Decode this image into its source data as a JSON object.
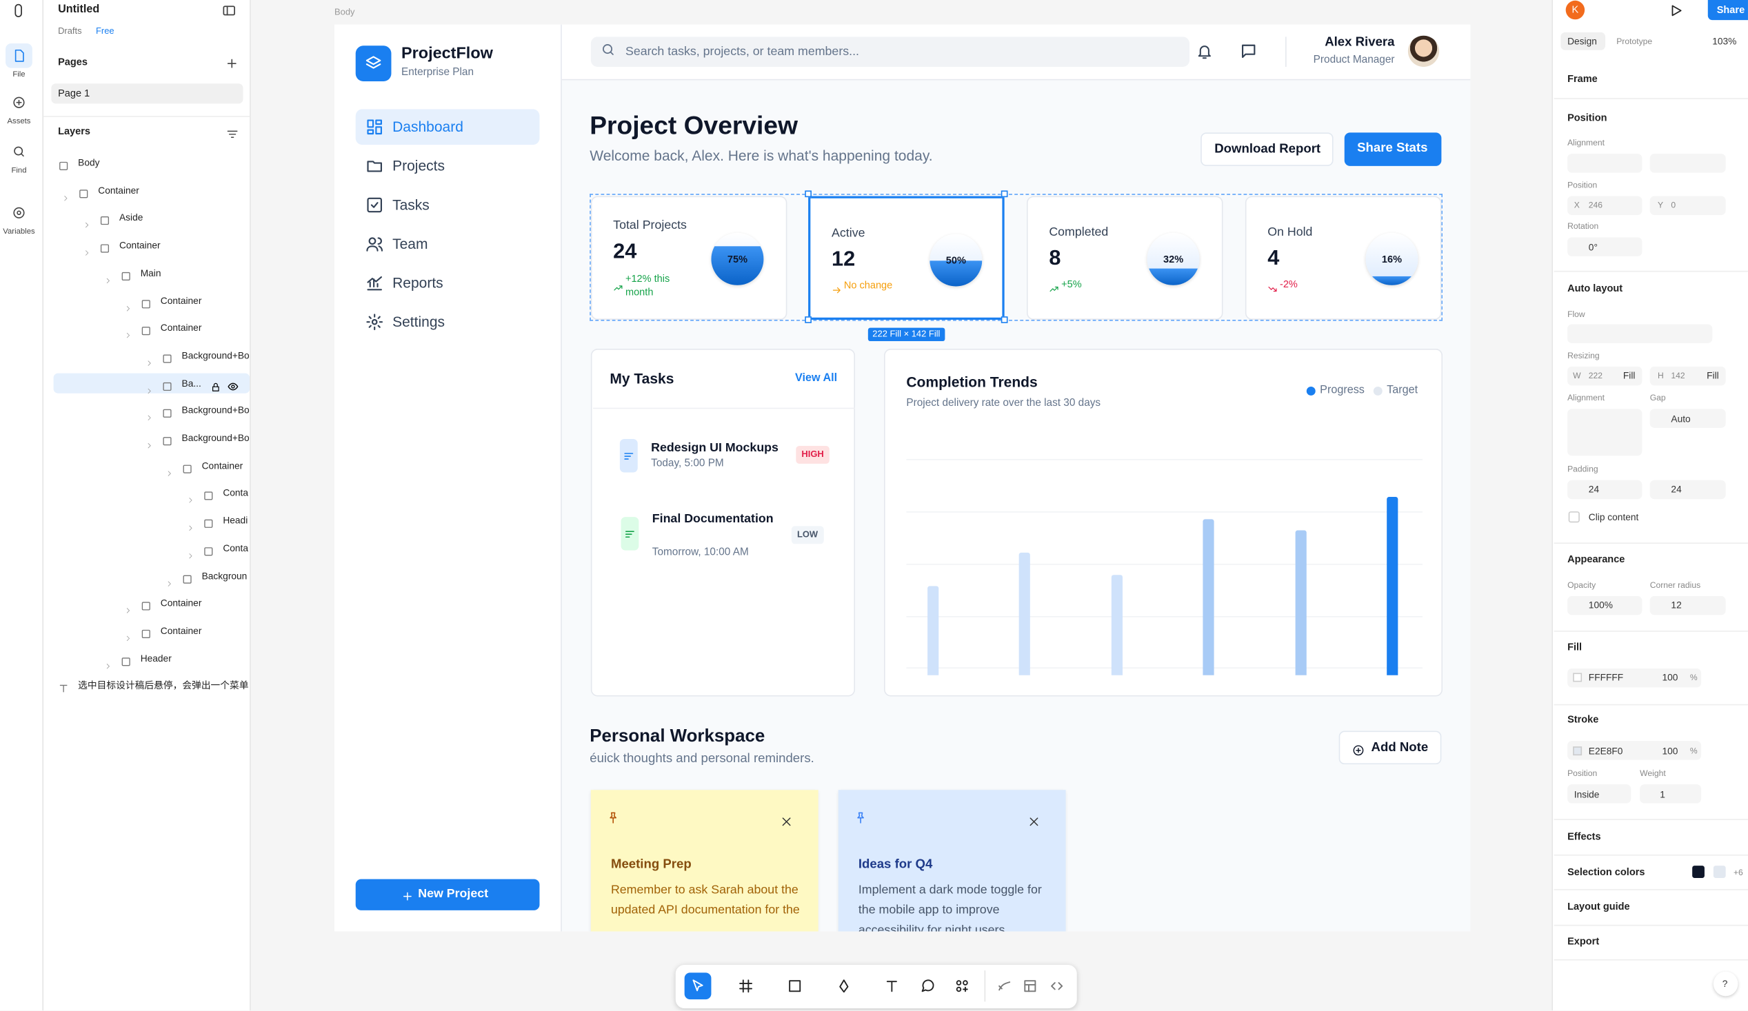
{
  "editor": {
    "file_name": "Untitled",
    "drafts": "Drafts",
    "plan": "Free",
    "rail": [
      "File",
      "Assets",
      "Find",
      "Variables"
    ],
    "pages_title": "Pages",
    "pages": [
      "Page 1"
    ],
    "layers_title": "Layers",
    "layers": [
      "Body",
      "Container",
      "Aside",
      "Container",
      "Main",
      "Container",
      "Container",
      "Background+Bo",
      "Ba...",
      "Background+Bo",
      "Background+Bo",
      "Container",
      "Conta",
      "Headi",
      "Conta",
      "Backgroun",
      "Container",
      "Container",
      "Header",
      "选中目标设计稿后悬停，会弹出一个菜单"
    ],
    "canvas_label": "Body",
    "selection_size": "222 Fill × 142 Fill"
  },
  "app": {
    "brand": "ProjectFlow",
    "plan": "Enterprise Plan",
    "nav": [
      "Dashboard",
      "Projects",
      "Tasks",
      "Team",
      "Reports",
      "Settings"
    ],
    "new_project": "New Project",
    "search": "Search tasks, projects, or team members...",
    "user_name": "Alex Rivera",
    "user_role": "Product Manager",
    "title": "Project Overview",
    "subtitle": "Welcome back, Alex. Here is what's happening today.",
    "download": "Download Report",
    "share_stats": "Share Stats",
    "stats": [
      {
        "label": "Total Projects",
        "value": "24",
        "change": "+12% this month",
        "gauge": "75%"
      },
      {
        "label": "Active",
        "value": "12",
        "change": "No change",
        "gauge": "50%"
      },
      {
        "label": "Completed",
        "value": "8",
        "change": "+5%",
        "gauge": "32%"
      },
      {
        "label": "On Hold",
        "value": "4",
        "change": "-2%",
        "gauge": "16%"
      }
    ],
    "tasks_title": "My Tasks",
    "view_all": "View All",
    "tasks": [
      {
        "title": "Redesign UI Mockups",
        "time": "Today, 5:00 PM",
        "priority": "HIGH"
      },
      {
        "title": "Final Documentation",
        "time": "Tomorrow, 10:00 AM",
        "priority": "LOW"
      }
    ],
    "trend": {
      "title": "Completion Trends",
      "subtitle": "Project delivery rate over the last 30 days",
      "legend": [
        "Progress",
        "Target"
      ],
      "values": [
        40,
        55,
        45,
        70,
        65,
        80
      ],
      "colors": [
        "#cfe2fb",
        "#cfe2fb",
        "#cfe2fb",
        "#a8cbf6",
        "#a8cbf6",
        "#1a7ff0"
      ],
      "ylim": [
        0,
        100
      ]
    },
    "workspace_title": "Personal Workspace",
    "workspace_subtitle": "éuick thoughts and personal reminders.",
    "add_note": "Add Note",
    "notes": [
      {
        "title": "Meeting Prep",
        "body": "Remember to ask Sarah about the updated API documentation for the"
      },
      {
        "title": "Ideas for Q4",
        "body": "Implement a dark mode toggle for the mobile app to improve accessibility for night users."
      }
    ]
  },
  "design_panel": {
    "avatar": "K",
    "share": "Share",
    "tabs": [
      "Design",
      "Prototype"
    ],
    "zoom": "103%",
    "frame": "Frame",
    "position": "Position",
    "alignment": "Alignment",
    "position_sub": "Position",
    "x_label": "X",
    "x": "246",
    "y_label": "Y",
    "y": "0",
    "rotation_label": "Rotation",
    "rotation": "0°",
    "auto_layout": "Auto layout",
    "flow": "Flow",
    "resizing": "Resizing",
    "w_label": "W",
    "w": "222",
    "w_mode": "Fill",
    "h_label": "H",
    "h": "142",
    "h_mode": "Fill",
    "alignment2": "Alignment",
    "gap": "Gap",
    "gap_value": "Auto",
    "padding": "Padding",
    "pad_h": "24",
    "pad_v": "24",
    "clip": "Clip content",
    "appearance": "Appearance",
    "opacity_label": "Opacity",
    "opacity": "100%",
    "radius_label": "Corner radius",
    "radius": "12",
    "fill": "Fill",
    "fill_hex": "FFFFFF",
    "fill_opacity": "100",
    "fill_unit": "%",
    "stroke": "Stroke",
    "stroke_hex": "E2E8F0",
    "stroke_opacity": "100",
    "stroke_unit": "%",
    "stroke_pos_label": "Position",
    "weight_label": "Weight",
    "stroke_pos": "Inside",
    "weight": "1",
    "effects": "Effects",
    "selection_colors": "Selection colors",
    "more_colors": "+6",
    "layout_guide": "Layout guide",
    "export": "Export",
    "help": "?"
  }
}
